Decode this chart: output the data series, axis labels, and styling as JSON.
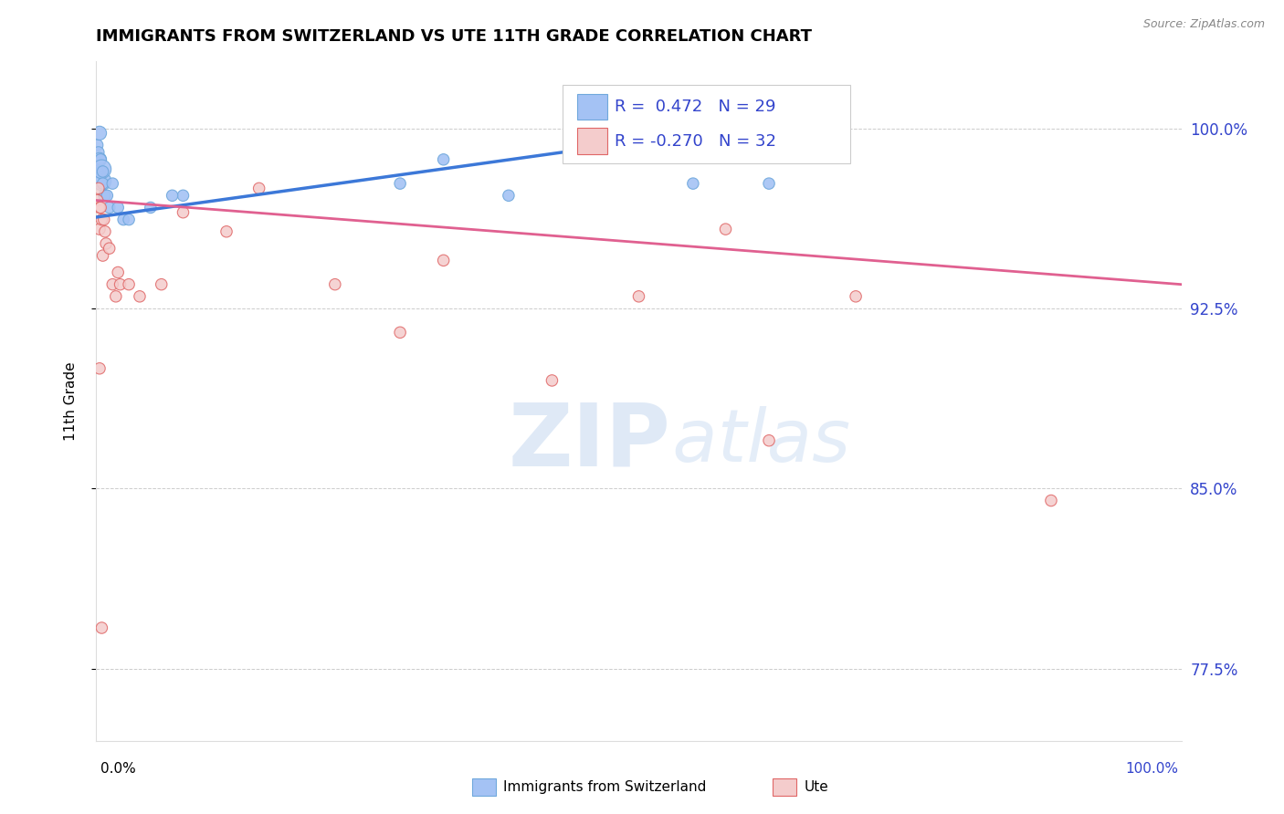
{
  "title": "IMMIGRANTS FROM SWITZERLAND VS UTE 11TH GRADE CORRELATION CHART",
  "source": "Source: ZipAtlas.com",
  "ylabel": "11th Grade",
  "ytick_labels": [
    "77.5%",
    "85.0%",
    "92.5%",
    "100.0%"
  ],
  "ytick_values": [
    0.775,
    0.85,
    0.925,
    1.0
  ],
  "xmin": 0.0,
  "xmax": 1.0,
  "ymin": 0.745,
  "ymax": 1.028,
  "blue_color": "#a4c2f4",
  "blue_edge_color": "#6fa8dc",
  "pink_color": "#f4cccc",
  "pink_edge_color": "#e06666",
  "blue_line_color": "#3c78d8",
  "pink_line_color": "#e06090",
  "blue_trend_x0": 0.0,
  "blue_trend_x1": 0.62,
  "blue_trend_y0": 0.963,
  "blue_trend_y1": 1.002,
  "pink_trend_x0": 0.0,
  "pink_trend_x1": 1.0,
  "pink_trend_y0": 0.97,
  "pink_trend_y1": 0.935,
  "blue_scatter_x": [
    0.001,
    0.001,
    0.002,
    0.002,
    0.003,
    0.003,
    0.003,
    0.004,
    0.004,
    0.005,
    0.005,
    0.006,
    0.006,
    0.007,
    0.008,
    0.01,
    0.012,
    0.015,
    0.02,
    0.025,
    0.03,
    0.05,
    0.08,
    0.28,
    0.32,
    0.38,
    0.55,
    0.62,
    0.07
  ],
  "blue_scatter_y": [
    0.982,
    0.993,
    0.982,
    0.99,
    0.982,
    0.987,
    0.998,
    0.982,
    0.987,
    0.978,
    0.983,
    0.977,
    0.982,
    0.972,
    0.972,
    0.972,
    0.967,
    0.977,
    0.967,
    0.962,
    0.962,
    0.967,
    0.972,
    0.977,
    0.987,
    0.972,
    0.977,
    0.977,
    0.972
  ],
  "blue_scatter_sizes": [
    80,
    80,
    80,
    80,
    120,
    120,
    120,
    80,
    80,
    220,
    220,
    80,
    80,
    80,
    80,
    80,
    80,
    80,
    80,
    80,
    80,
    80,
    80,
    80,
    80,
    80,
    80,
    80,
    80
  ],
  "pink_scatter_x": [
    0.001,
    0.002,
    0.003,
    0.003,
    0.004,
    0.005,
    0.006,
    0.007,
    0.008,
    0.009,
    0.012,
    0.015,
    0.018,
    0.02,
    0.022,
    0.03,
    0.04,
    0.06,
    0.08,
    0.12,
    0.15,
    0.22,
    0.28,
    0.32,
    0.42,
    0.5,
    0.58,
    0.62,
    0.7,
    0.88,
    0.003,
    0.005
  ],
  "pink_scatter_y": [
    0.97,
    0.975,
    0.958,
    0.967,
    0.967,
    0.962,
    0.947,
    0.962,
    0.957,
    0.952,
    0.95,
    0.935,
    0.93,
    0.94,
    0.935,
    0.935,
    0.93,
    0.935,
    0.965,
    0.957,
    0.975,
    0.935,
    0.915,
    0.945,
    0.895,
    0.93,
    0.958,
    0.87,
    0.93,
    0.845,
    0.9,
    0.792
  ],
  "pink_scatter_sizes": [
    80,
    80,
    80,
    80,
    80,
    80,
    80,
    80,
    80,
    80,
    80,
    80,
    80,
    80,
    80,
    80,
    80,
    80,
    80,
    80,
    80,
    80,
    80,
    80,
    80,
    80,
    80,
    80,
    80,
    80,
    80,
    80
  ],
  "legend_text1": "R =  0.472   N = 29",
  "legend_text2": "R = -0.270   N = 32",
  "legend_color": "#3344cc",
  "legend_fontsize": 13,
  "watermark_zip_color": "#c5d8f0",
  "watermark_atlas_color": "#c5d8f0"
}
